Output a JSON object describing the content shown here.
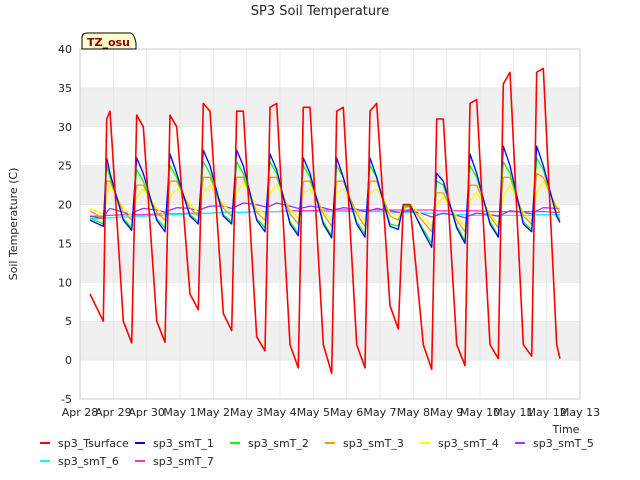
{
  "chart_data": {
    "type": "line",
    "title": "SP3 Soil Temperature",
    "xlabel": "Time",
    "ylabel": "Soil Temperature (C)",
    "badge": "TZ_osu",
    "ylim": [
      -5,
      40
    ],
    "xlim": [
      0,
      15
    ],
    "yticks": [
      -5,
      0,
      5,
      10,
      15,
      20,
      25,
      30,
      35,
      40
    ],
    "xticks": [
      {
        "pos": 0,
        "label": "Apr 28"
      },
      {
        "pos": 1,
        "label": "Apr 29"
      },
      {
        "pos": 2,
        "label": "Apr 30"
      },
      {
        "pos": 3,
        "label": "May 1"
      },
      {
        "pos": 4,
        "label": "May 2"
      },
      {
        "pos": 5,
        "label": "May 3"
      },
      {
        "pos": 6,
        "label": "May 4"
      },
      {
        "pos": 7,
        "label": "May 5"
      },
      {
        "pos": 8,
        "label": "May 6"
      },
      {
        "pos": 9,
        "label": "May 7"
      },
      {
        "pos": 10,
        "label": "May 8"
      },
      {
        "pos": 11,
        "label": "May 9"
      },
      {
        "pos": 12,
        "label": "May 10"
      },
      {
        "pos": 13,
        "label": "May 11"
      },
      {
        "pos": 14,
        "label": "May 12"
      },
      {
        "pos": 15,
        "label": "May 13"
      }
    ],
    "x_days": [
      0.3,
      0.7,
      0.8,
      0.9,
      1.3,
      1.55,
      1.7,
      1.9,
      2.3,
      2.55,
      2.7,
      2.9,
      3.3,
      3.55,
      3.7,
      3.9,
      4.3,
      4.55,
      4.7,
      4.9,
      5.3,
      5.55,
      5.7,
      5.9,
      6.3,
      6.55,
      6.7,
      6.9,
      7.3,
      7.55,
      7.7,
      7.9,
      8.3,
      8.55,
      8.7,
      8.9,
      9.3,
      9.55,
      9.7,
      9.9,
      10.3,
      10.55,
      10.7,
      10.9,
      11.3,
      11.55,
      11.7,
      11.9,
      12.3,
      12.55,
      12.7,
      12.9,
      13.3,
      13.55,
      13.7,
      13.9,
      14.3,
      14.4
    ],
    "series": [
      {
        "name": "sp3_Tsurface",
        "color": "#ff0000",
        "values": [
          8.5,
          5,
          31,
          32,
          5,
          2.2,
          31.5,
          30,
          5,
          2.3,
          31.5,
          30,
          8.5,
          6.5,
          33,
          32,
          6,
          3.8,
          32,
          32,
          3,
          1.2,
          32.5,
          33,
          2,
          -1,
          32.5,
          32.5,
          2,
          -1.7,
          32,
          32.5,
          2,
          -1,
          32,
          33,
          7,
          4,
          20,
          20,
          2,
          -1.2,
          31,
          31,
          2,
          -0.7,
          33,
          33.5,
          2,
          0.2,
          35.5,
          37,
          2,
          0.5,
          37,
          37.5,
          2,
          0.2
        ]
      },
      {
        "name": "sp3_smT_1",
        "color": "#0000ff",
        "values": [
          18,
          17.2,
          26,
          24,
          18,
          16.7,
          26,
          24,
          18,
          16.5,
          26.5,
          24,
          18.5,
          17.5,
          27,
          25,
          18.5,
          17.5,
          27,
          25,
          18,
          16.5,
          26.5,
          24.5,
          17.5,
          16,
          26,
          24,
          17.5,
          15.7,
          26,
          23.5,
          17.5,
          15.8,
          26,
          23.5,
          17.2,
          16.8,
          20,
          20,
          16.5,
          14.5,
          24,
          23,
          17,
          15,
          26.5,
          24,
          17.5,
          15.8,
          27.5,
          25,
          17.5,
          16.5,
          27.5,
          25,
          18.5,
          17.7
        ]
      },
      {
        "name": "sp3_smT_2",
        "color": "#00ff00",
        "values": [
          18.3,
          17.5,
          25,
          23.5,
          18.2,
          17,
          24.5,
          23,
          18.2,
          17,
          25,
          23.5,
          18.7,
          17.8,
          25.5,
          24,
          18.7,
          17.8,
          25.5,
          24,
          18.2,
          17,
          25.5,
          24,
          17.8,
          16.3,
          25,
          23.5,
          17.8,
          16,
          25,
          23.5,
          17.8,
          16.2,
          25,
          23.5,
          17.5,
          17.2,
          19.8,
          19.8,
          16.8,
          15,
          23,
          22.5,
          17.3,
          15.3,
          25,
          23.5,
          17.8,
          16,
          25.5,
          24,
          17.8,
          16.7,
          26,
          24.5,
          18.8,
          18
        ]
      },
      {
        "name": "sp3_smT_3",
        "color": "#ff9900",
        "values": [
          19.2,
          18.2,
          23,
          23,
          19,
          18,
          22.5,
          22.5,
          19,
          18,
          23,
          23,
          19.5,
          18.5,
          23.5,
          23.5,
          19.5,
          18.5,
          23.5,
          23.5,
          19,
          18,
          23.5,
          23.5,
          18.8,
          17.5,
          23,
          23,
          18.8,
          17.2,
          23,
          23,
          18.8,
          17.2,
          23,
          23,
          18.5,
          18,
          19.5,
          19.8,
          17.8,
          16.5,
          21.5,
          21.5,
          18,
          16.5,
          22.5,
          22.5,
          18.5,
          17,
          23.5,
          23.5,
          18.5,
          17.5,
          24,
          23.5,
          19.5,
          19
        ]
      },
      {
        "name": "sp3_smT_4",
        "color": "#ffff00",
        "values": [
          19.5,
          18.8,
          21,
          22.5,
          19.5,
          18.5,
          21,
          22,
          19.5,
          18.5,
          21,
          22,
          20,
          19,
          21.5,
          22.5,
          20,
          19,
          21.5,
          23,
          19.5,
          18.8,
          21.5,
          22.5,
          19.3,
          18.3,
          21.5,
          22,
          19.2,
          18,
          21.5,
          22,
          19.2,
          18,
          21.5,
          22,
          19,
          18.5,
          19.5,
          20,
          18.5,
          17.2,
          20,
          21,
          18.5,
          17.2,
          20.5,
          21.5,
          18.8,
          17.5,
          21,
          22.5,
          19,
          18,
          21.5,
          23,
          19.8,
          19.5
        ]
      },
      {
        "name": "sp3_smT_5",
        "color": "#9933ff",
        "values": [
          18.5,
          18.2,
          19,
          19.5,
          19,
          18.7,
          19.2,
          19.5,
          19.3,
          19,
          19.3,
          19.6,
          19.5,
          19.2,
          19.5,
          19.8,
          19.8,
          19.5,
          19.8,
          20.2,
          20,
          19.7,
          19.8,
          20.2,
          19.8,
          19.5,
          19.6,
          19.8,
          19.6,
          19.3,
          19.4,
          19.6,
          19.4,
          19.1,
          19.2,
          19.5,
          19.2,
          19,
          19.1,
          19.2,
          18.8,
          18.4,
          18.6,
          18.9,
          18.6,
          18.3,
          18.6,
          18.9,
          18.7,
          18.5,
          18.8,
          19.2,
          19,
          18.8,
          19.2,
          19.6,
          19.5,
          19.5
        ]
      },
      {
        "name": "sp3_smT_6",
        "color": "#00ffff",
        "values": [
          18.2,
          18.2,
          18.3,
          18.3,
          18.4,
          18.4,
          18.5,
          18.5,
          18.6,
          18.6,
          18.7,
          18.7,
          18.8,
          18.8,
          18.9,
          18.9,
          19,
          19,
          19,
          19,
          19.1,
          19.1,
          19.1,
          19.1,
          19.1,
          19.1,
          19.1,
          19.1,
          19.1,
          19.1,
          19.1,
          19.1,
          19.1,
          19.1,
          19.1,
          19.1,
          19,
          19,
          19,
          19,
          18.9,
          18.9,
          18.8,
          18.8,
          18.7,
          18.7,
          18.6,
          18.6,
          18.6,
          18.6,
          18.6,
          18.6,
          18.6,
          18.6,
          18.7,
          18.7,
          18.7,
          18.7
        ]
      },
      {
        "name": "sp3_smT_7",
        "color": "#ff33cc",
        "values": [
          18.5,
          18.5,
          18.6,
          18.6,
          18.7,
          18.7,
          18.7,
          18.7,
          18.8,
          18.8,
          18.8,
          18.8,
          18.9,
          18.9,
          18.9,
          18.9,
          19,
          19,
          19,
          19,
          19.1,
          19.1,
          19.1,
          19.1,
          19.2,
          19.2,
          19.2,
          19.2,
          19.3,
          19.3,
          19.3,
          19.3,
          19.3,
          19.3,
          19.3,
          19.3,
          19.3,
          19.3,
          19.3,
          19.3,
          19.3,
          19.3,
          19.2,
          19.2,
          19.2,
          19.2,
          19.2,
          19.2,
          19.1,
          19.1,
          19.1,
          19.1,
          19.1,
          19.1,
          19.1,
          19.1,
          19,
          19
        ]
      }
    ],
    "legend": [
      {
        "name": "sp3_Tsurface",
        "color": "#ff0000"
      },
      {
        "name": "sp3_smT_1",
        "color": "#0000ff"
      },
      {
        "name": "sp3_smT_2",
        "color": "#00ff00"
      },
      {
        "name": "sp3_smT_3",
        "color": "#ff9900"
      },
      {
        "name": "sp3_smT_4",
        "color": "#ffff00"
      },
      {
        "name": "sp3_smT_5",
        "color": "#9933ff"
      },
      {
        "name": "sp3_smT_6",
        "color": "#00ffff"
      },
      {
        "name": "sp3_smT_7",
        "color": "#ff33cc"
      }
    ],
    "colors": {
      "band": "#f0f0f0",
      "grid": "#ffffff",
      "axis": "#cccccc",
      "text": "#262626",
      "badge_bg": "#ffffcc",
      "badge_text": "#8b0000"
    }
  }
}
